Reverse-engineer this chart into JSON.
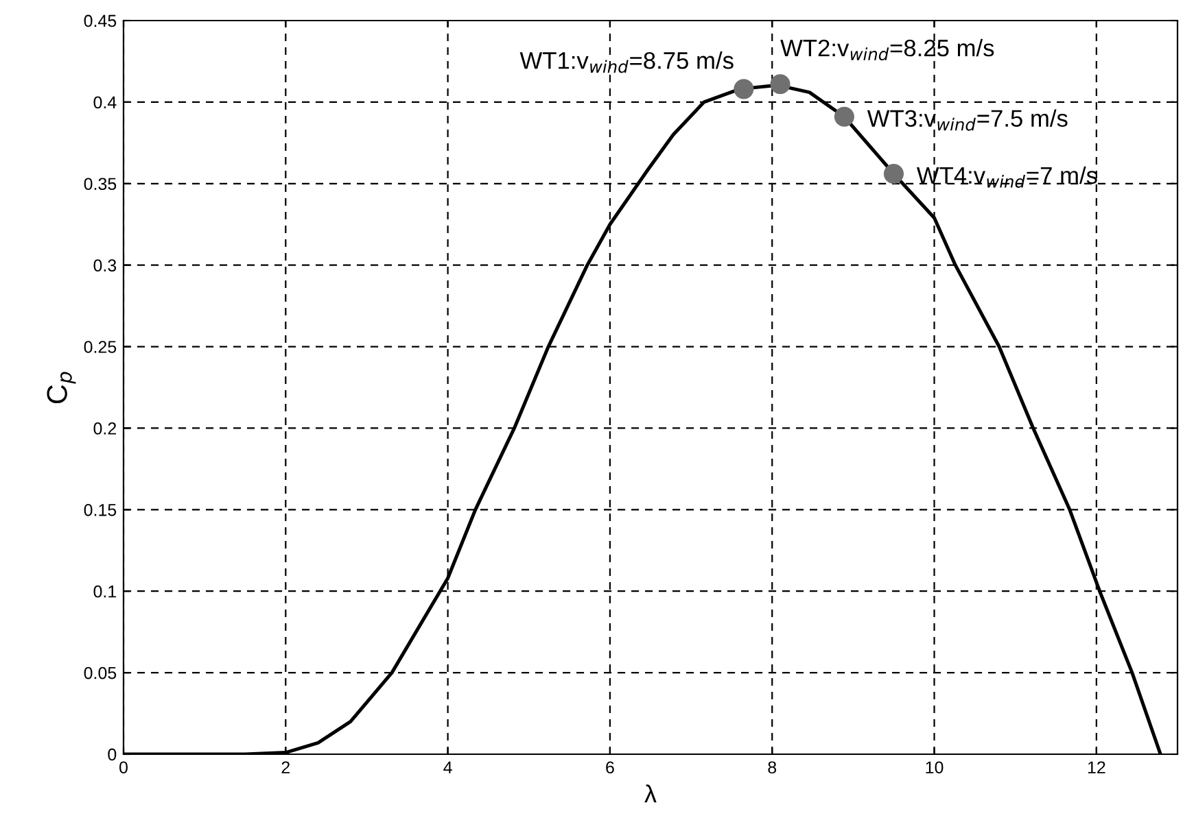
{
  "chart_data": {
    "type": "line",
    "xlabel": "λ",
    "ylabel": "C$_{p}$",
    "xlim": [
      0,
      13
    ],
    "ylim": [
      0,
      0.45
    ],
    "xticks": [
      0,
      2,
      4,
      6,
      8,
      10,
      12
    ],
    "yticks": [
      0,
      0.05,
      0.1,
      0.15,
      0.2,
      0.25,
      0.3,
      0.35,
      0.4,
      0.45
    ],
    "grid": true,
    "series": [
      {
        "color": "#000000",
        "x": [
          0,
          0.5,
          1.5,
          2.0,
          2.4,
          2.8,
          3.31,
          4.0,
          4.34,
          4.82,
          5.24,
          5.72,
          6.0,
          6.46,
          6.78,
          7.16,
          7.6,
          8.0,
          8.1,
          8.46,
          8.89,
          9.5,
          10.0,
          10.26,
          10.8,
          11.22,
          11.67,
          12.04,
          12.44,
          12.79
        ],
        "values": [
          0,
          0,
          0,
          0.001,
          0.007,
          0.02,
          0.05,
          0.108,
          0.15,
          0.2,
          0.25,
          0.3,
          0.325,
          0.358,
          0.38,
          0.4,
          0.408,
          0.41,
          0.41,
          0.406,
          0.391,
          0.356,
          0.329,
          0.3,
          0.25,
          0.2,
          0.15,
          0.1,
          0.05,
          0
        ]
      },
      {
        "type": "scatter",
        "color": "#707070",
        "marker": "circle",
        "x": [
          7.65,
          8.1,
          8.89,
          9.5
        ],
        "values": [
          0.408,
          0.411,
          0.391,
          0.356
        ]
      }
    ],
    "annotations": [
      {
        "text": "WT1:v$_{wind}$=8.75 m/s",
        "x": 7.65,
        "y": 0.408
      },
      {
        "text": "WT2:v$_{wind}$=8.25 m/s",
        "x": 8.1,
        "y": 0.411
      },
      {
        "text": "WT3:v$_{wind}$=7.5 m/s",
        "x": 8.89,
        "y": 0.391
      },
      {
        "text": "WT4:v$_{wind}$=7 m/s",
        "x": 9.5,
        "y": 0.356
      }
    ]
  }
}
